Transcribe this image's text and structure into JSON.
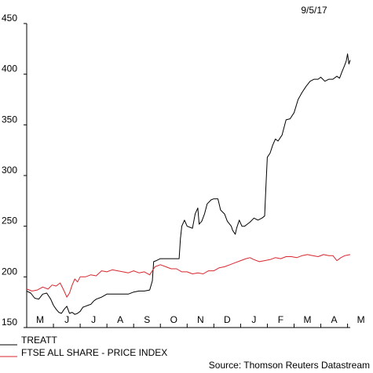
{
  "date_label": "9/5/17",
  "source_label": "Source: Thomson Reuters Datastream",
  "chart_data": {
    "type": "line",
    "title": "",
    "xlabel": "",
    "ylabel": "",
    "ylim": [
      150,
      450
    ],
    "yticks": [
      150,
      200,
      250,
      300,
      350,
      400,
      450
    ],
    "xlim": [
      0,
      12.1
    ],
    "month_labels": [
      "M",
      "J",
      "J",
      "A",
      "S",
      "O",
      "N",
      "D",
      "J",
      "F",
      "M",
      "A",
      "M"
    ],
    "legend": "bottom-left",
    "grid": false,
    "series": [
      {
        "name": "TREATT",
        "color": "#000000",
        "points": [
          [
            0.0,
            186
          ],
          [
            0.15,
            184
          ],
          [
            0.3,
            179
          ],
          [
            0.45,
            178
          ],
          [
            0.6,
            183
          ],
          [
            0.75,
            184
          ],
          [
            0.9,
            178
          ],
          [
            1.0,
            172
          ],
          [
            1.1,
            168
          ],
          [
            1.2,
            165
          ],
          [
            1.3,
            164
          ],
          [
            1.4,
            168
          ],
          [
            1.5,
            171
          ],
          [
            1.6,
            164
          ],
          [
            1.7,
            165
          ],
          [
            1.8,
            163
          ],
          [
            1.9,
            164
          ],
          [
            2.0,
            166
          ],
          [
            2.1,
            170
          ],
          [
            2.2,
            171
          ],
          [
            2.3,
            172
          ],
          [
            2.4,
            173
          ],
          [
            2.5,
            176
          ],
          [
            2.6,
            178
          ],
          [
            2.8,
            180
          ],
          [
            3.0,
            183
          ],
          [
            3.2,
            183
          ],
          [
            3.4,
            183
          ],
          [
            3.6,
            183
          ],
          [
            3.8,
            183
          ],
          [
            4.0,
            185
          ],
          [
            4.2,
            186
          ],
          [
            4.4,
            186
          ],
          [
            4.6,
            187
          ],
          [
            4.7,
            196
          ],
          [
            4.75,
            215
          ],
          [
            4.85,
            216
          ],
          [
            5.0,
            218
          ],
          [
            5.2,
            218
          ],
          [
            5.4,
            218
          ],
          [
            5.6,
            218
          ],
          [
            5.7,
            218
          ],
          [
            5.75,
            238
          ],
          [
            5.8,
            250
          ],
          [
            5.9,
            256
          ],
          [
            6.0,
            250
          ],
          [
            6.1,
            249
          ],
          [
            6.2,
            248
          ],
          [
            6.3,
            262
          ],
          [
            6.4,
            268
          ],
          [
            6.45,
            252
          ],
          [
            6.55,
            255
          ],
          [
            6.65,
            262
          ],
          [
            6.75,
            272
          ],
          [
            6.9,
            276
          ],
          [
            7.0,
            277
          ],
          [
            7.15,
            277
          ],
          [
            7.25,
            266
          ],
          [
            7.4,
            262
          ],
          [
            7.5,
            255
          ],
          [
            7.65,
            250
          ],
          [
            7.7,
            246
          ],
          [
            7.8,
            242
          ],
          [
            7.85,
            248
          ],
          [
            7.95,
            256
          ],
          [
            8.05,
            250
          ],
          [
            8.15,
            250
          ],
          [
            8.25,
            252
          ],
          [
            8.35,
            254
          ],
          [
            8.5,
            258
          ],
          [
            8.65,
            256
          ],
          [
            8.8,
            258
          ],
          [
            8.9,
            260
          ],
          [
            8.95,
            290
          ],
          [
            9.0,
            318
          ],
          [
            9.1,
            322
          ],
          [
            9.2,
            330
          ],
          [
            9.3,
            336
          ],
          [
            9.4,
            334
          ],
          [
            9.55,
            340
          ],
          [
            9.7,
            355
          ],
          [
            9.85,
            356
          ],
          [
            10.0,
            362
          ],
          [
            10.15,
            375
          ],
          [
            10.3,
            382
          ],
          [
            10.45,
            388
          ],
          [
            10.6,
            393
          ],
          [
            10.75,
            395
          ],
          [
            10.9,
            395
          ],
          [
            11.0,
            397
          ],
          [
            11.15,
            393
          ],
          [
            11.3,
            395
          ],
          [
            11.45,
            395
          ],
          [
            11.6,
            398
          ],
          [
            11.7,
            396
          ],
          [
            11.8,
            403
          ],
          [
            11.88,
            408
          ],
          [
            11.95,
            413
          ],
          [
            12.0,
            420
          ],
          [
            12.05,
            410
          ],
          [
            12.1,
            414
          ]
        ]
      },
      {
        "name": "FTSE ALL SHARE - PRICE INDEX",
        "color": "#d9262e",
        "points": [
          [
            0.0,
            188
          ],
          [
            0.2,
            186
          ],
          [
            0.4,
            187
          ],
          [
            0.6,
            190
          ],
          [
            0.8,
            188
          ],
          [
            0.95,
            192
          ],
          [
            1.1,
            191
          ],
          [
            1.25,
            194
          ],
          [
            1.4,
            186
          ],
          [
            1.5,
            180
          ],
          [
            1.6,
            184
          ],
          [
            1.7,
            192
          ],
          [
            1.8,
            198
          ],
          [
            1.9,
            195
          ],
          [
            2.0,
            200
          ],
          [
            2.2,
            200
          ],
          [
            2.4,
            202
          ],
          [
            2.6,
            201
          ],
          [
            2.8,
            206
          ],
          [
            3.0,
            205
          ],
          [
            3.2,
            207
          ],
          [
            3.4,
            206
          ],
          [
            3.6,
            205
          ],
          [
            3.8,
            204
          ],
          [
            4.0,
            206
          ],
          [
            4.2,
            204
          ],
          [
            4.4,
            205
          ],
          [
            4.6,
            202
          ],
          [
            4.8,
            210
          ],
          [
            5.0,
            212
          ],
          [
            5.2,
            210
          ],
          [
            5.4,
            208
          ],
          [
            5.6,
            208
          ],
          [
            5.8,
            205
          ],
          [
            6.0,
            205
          ],
          [
            6.2,
            203
          ],
          [
            6.4,
            204
          ],
          [
            6.6,
            203
          ],
          [
            6.8,
            206
          ],
          [
            7.0,
            206
          ],
          [
            7.2,
            209
          ],
          [
            7.4,
            210
          ],
          [
            7.6,
            212
          ],
          [
            7.8,
            214
          ],
          [
            8.0,
            216
          ],
          [
            8.2,
            218
          ],
          [
            8.35,
            219
          ],
          [
            8.5,
            217
          ],
          [
            8.7,
            215
          ],
          [
            8.9,
            216
          ],
          [
            9.1,
            217
          ],
          [
            9.3,
            219
          ],
          [
            9.5,
            218
          ],
          [
            9.7,
            220
          ],
          [
            9.9,
            220
          ],
          [
            10.1,
            219
          ],
          [
            10.3,
            221
          ],
          [
            10.5,
            222
          ],
          [
            10.7,
            221
          ],
          [
            10.9,
            220
          ],
          [
            11.1,
            222
          ],
          [
            11.3,
            221
          ],
          [
            11.45,
            221
          ],
          [
            11.6,
            216
          ],
          [
            11.75,
            219
          ],
          [
            11.9,
            221
          ],
          [
            12.1,
            222
          ]
        ]
      }
    ]
  }
}
